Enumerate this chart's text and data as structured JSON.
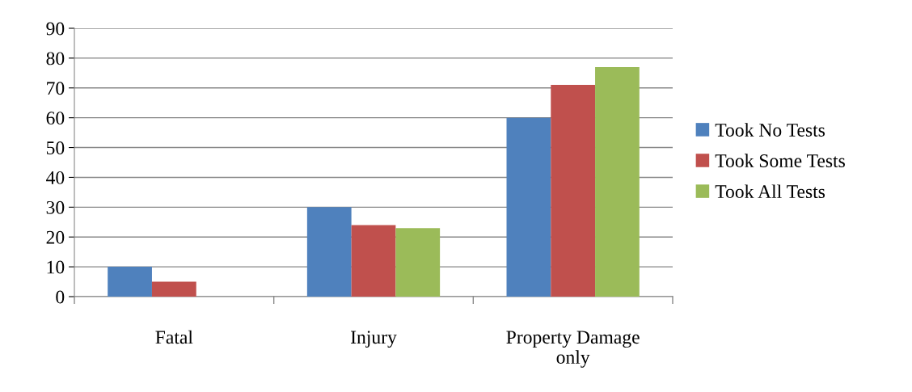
{
  "chart_data": {
    "type": "bar",
    "categories": [
      "Fatal",
      "Injury",
      "Property Damage\nonly"
    ],
    "series": [
      {
        "name": "Took No Tests",
        "color": "#4f81bd",
        "values": [
          10,
          30,
          60
        ]
      },
      {
        "name": "Took Some Tests",
        "color": "#c0504d",
        "values": [
          5,
          24,
          71
        ]
      },
      {
        "name": "Took All Tests",
        "color": "#9bbb59",
        "values": [
          0,
          23,
          77
        ]
      }
    ],
    "ylim": [
      0,
      90
    ],
    "yticks": [
      0,
      10,
      20,
      30,
      40,
      50,
      60,
      70,
      80,
      90
    ],
    "grid": "y",
    "legend": "right"
  }
}
